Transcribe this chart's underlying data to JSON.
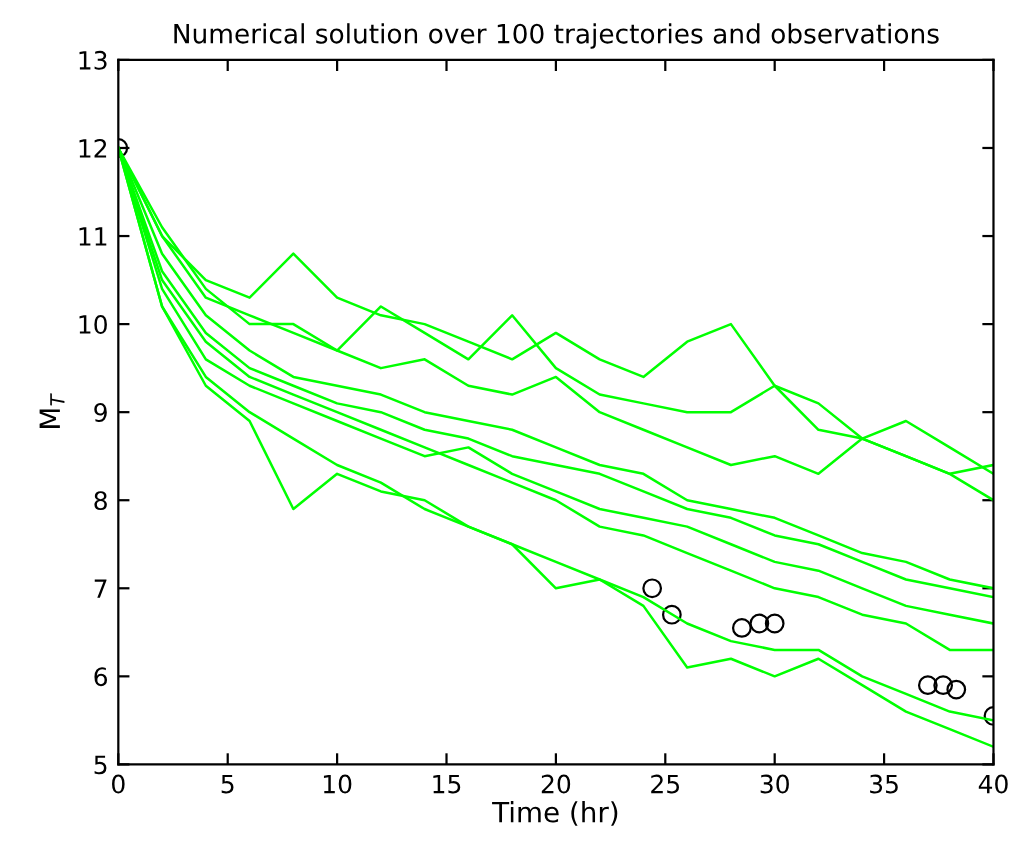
{
  "chart_data": {
    "type": "line",
    "title": "Numerical solution over 100 trajectories and observations",
    "xlabel": "Time (hr)",
    "ylabel": "M$_{T}$",
    "x": [
      0,
      2,
      4,
      6,
      8,
      10,
      12,
      14,
      16,
      18,
      20,
      22,
      24,
      26,
      28,
      30,
      32,
      34,
      36,
      38,
      40
    ],
    "xlim": [
      0,
      40
    ],
    "xticks": [
      0,
      5,
      10,
      15,
      20,
      25,
      30,
      35,
      40
    ],
    "ylim": [
      5,
      13
    ],
    "yticks": [
      5,
      6,
      7,
      8,
      9,
      10,
      11,
      12,
      13
    ],
    "grid": false,
    "legend": false,
    "marker": "none",
    "line_style": "solid",
    "series": [
      {
        "color": "#00ff00",
        "values": [
          12,
          11.0,
          10.5,
          10.3,
          10.8,
          10.3,
          10.1,
          10.0,
          9.8,
          9.6,
          9.9,
          9.6,
          9.4,
          9.8,
          10.0,
          9.3,
          8.8,
          8.7,
          8.5,
          8.3,
          8.4
        ]
      },
      {
        "color": "#00ff00",
        "values": [
          12,
          11.1,
          10.4,
          10.0,
          10.0,
          9.7,
          10.2,
          9.9,
          9.6,
          10.1,
          9.5,
          9.2,
          9.1,
          9.0,
          9.0,
          9.3,
          9.1,
          8.7,
          8.9,
          8.6,
          8.3
        ]
      },
      {
        "color": "#00ff00",
        "values": [
          12,
          10.6,
          9.9,
          9.5,
          9.3,
          9.1,
          9.0,
          8.8,
          8.7,
          8.5,
          8.4,
          8.3,
          8.1,
          7.9,
          7.8,
          7.6,
          7.5,
          7.3,
          7.1,
          7.0,
          6.9
        ]
      },
      {
        "color": "#00ff00",
        "values": [
          12,
          10.4,
          9.6,
          9.3,
          9.1,
          8.9,
          8.7,
          8.5,
          8.6,
          8.3,
          8.1,
          7.9,
          7.8,
          7.7,
          7.5,
          7.3,
          7.2,
          7.0,
          6.8,
          6.7,
          6.6
        ]
      },
      {
        "color": "#00ff00",
        "values": [
          12,
          10.2,
          9.3,
          8.9,
          7.9,
          8.3,
          8.1,
          8.0,
          7.7,
          7.5,
          7.3,
          7.1,
          6.9,
          6.6,
          6.4,
          6.3,
          6.3,
          6.0,
          5.8,
          5.6,
          5.5
        ]
      },
      {
        "color": "#00ff00",
        "values": [
          12,
          10.2,
          9.4,
          9.0,
          8.7,
          8.4,
          8.2,
          7.9,
          7.7,
          7.5,
          7.0,
          7.1,
          6.8,
          6.1,
          6.2,
          6.0,
          6.2,
          5.9,
          5.6,
          5.4,
          5.2
        ]
      },
      {
        "color": "#00ff00",
        "values": [
          12,
          11.0,
          10.3,
          10.1,
          9.9,
          9.7,
          9.5,
          9.6,
          9.3,
          9.2,
          9.4,
          9.0,
          8.8,
          8.6,
          8.4,
          8.5,
          8.3,
          8.7,
          8.5,
          8.3,
          8.0
        ]
      },
      {
        "color": "#00ff00",
        "values": [
          12,
          10.8,
          10.1,
          9.7,
          9.4,
          9.3,
          9.2,
          9.0,
          8.9,
          8.8,
          8.6,
          8.4,
          8.3,
          8.0,
          7.9,
          7.8,
          7.6,
          7.4,
          7.3,
          7.1,
          7.0
        ]
      },
      {
        "color": "#00ff00",
        "values": [
          12,
          10.5,
          9.8,
          9.4,
          9.2,
          9.0,
          8.8,
          8.6,
          8.4,
          8.2,
          8.0,
          7.7,
          7.6,
          7.4,
          7.2,
          7.0,
          6.9,
          6.7,
          6.6,
          6.3,
          6.3
        ]
      },
      {
        "type": "scatter",
        "color": "#000000",
        "marker": "circle",
        "x": [
          0,
          24.4,
          25.3,
          28.5,
          29.3,
          30,
          37,
          37.7,
          38.3,
          40
        ],
        "values": [
          12,
          7.0,
          6.7,
          6.55,
          6.6,
          6.6,
          5.9,
          5.9,
          5.85,
          5.55
        ]
      }
    ]
  }
}
